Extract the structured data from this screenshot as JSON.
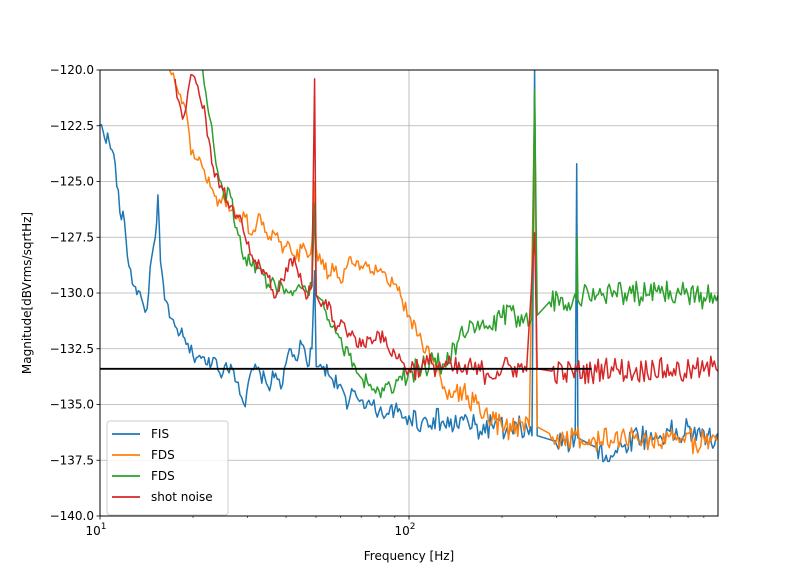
{
  "chart_data": {
    "type": "line",
    "title": "",
    "xlabel": "Frequency [Hz]",
    "ylabel": "Magnitude[dBVrms/sqrtHz]",
    "xscale": "log",
    "xlim": [
      10,
      1000
    ],
    "ylim": [
      -140,
      -120
    ],
    "grid": true,
    "legend_position": "lower-left",
    "x_ticks": [
      {
        "value": 10,
        "base": "10",
        "exp": "1"
      },
      {
        "value": 100,
        "base": "10",
        "exp": "2"
      }
    ],
    "y_ticks": [
      {
        "value": -120,
        "label": "−120.0"
      },
      {
        "value": -122.5,
        "label": "−122.5"
      },
      {
        "value": -125,
        "label": "−125.0"
      },
      {
        "value": -127.5,
        "label": "−127.5"
      },
      {
        "value": -130,
        "label": "−130.0"
      },
      {
        "value": -132.5,
        "label": "−132.5"
      },
      {
        "value": -135,
        "label": "−135.0"
      },
      {
        "value": -137.5,
        "label": "−137.5"
      },
      {
        "value": -140,
        "label": "−140.0"
      }
    ],
    "reference_line": {
      "y": -133.4,
      "x_range": [
        10,
        390
      ],
      "color": "#000000"
    },
    "series": [
      {
        "name": "FIS",
        "color": "#1f77b4",
        "points": [
          [
            10,
            -122.5
          ],
          [
            10.7,
            -123.2
          ],
          [
            11.2,
            -124.2
          ],
          [
            11.6,
            -126.4
          ],
          [
            12,
            -126.8
          ],
          [
            12.4,
            -128.8
          ],
          [
            12.9,
            -129.7
          ],
          [
            13.3,
            -129.9
          ],
          [
            13.8,
            -130.5
          ],
          [
            14.2,
            -130.7
          ],
          [
            14.7,
            -128.4
          ],
          [
            15.1,
            -127.5
          ],
          [
            15.4,
            -125.6
          ],
          [
            15.7,
            -128.6
          ],
          [
            16.2,
            -130.3
          ],
          [
            16.8,
            -131.1
          ],
          [
            17.5,
            -131.5
          ],
          [
            18.2,
            -131.8
          ],
          [
            19,
            -132.3
          ],
          [
            20,
            -132.8
          ],
          [
            21,
            -132.8
          ],
          [
            22,
            -133.2
          ],
          [
            23.5,
            -132.9
          ],
          [
            25,
            -133.6
          ],
          [
            26.5,
            -133.2
          ],
          [
            28,
            -134.0
          ],
          [
            29.5,
            -135.1
          ],
          [
            31,
            -133.4
          ],
          [
            33,
            -133.6
          ],
          [
            35,
            -134.2
          ],
          [
            37,
            -133.6
          ],
          [
            39,
            -134.1
          ],
          [
            41,
            -132.5
          ],
          [
            43,
            -133.0
          ],
          [
            45,
            -132.3
          ],
          [
            47,
            -133.3
          ],
          [
            48.5,
            -132.5
          ],
          [
            49.5,
            -129.0
          ],
          [
            50.1,
            -133.3
          ],
          [
            51,
            -133.3
          ],
          [
            53,
            -133.3
          ],
          [
            56,
            -133.8
          ],
          [
            60,
            -134.1
          ],
          [
            63,
            -135.2
          ],
          [
            66,
            -134.4
          ],
          [
            70,
            -134.8
          ],
          [
            75,
            -135.0
          ],
          [
            80,
            -135.3
          ],
          [
            85,
            -135.4
          ],
          [
            90,
            -135.2
          ],
          [
            95,
            -135.6
          ],
          [
            100,
            -135.5
          ],
          [
            110,
            -135.8
          ],
          [
            120,
            -135.6
          ],
          [
            135,
            -136.0
          ],
          [
            150,
            -135.7
          ],
          [
            170,
            -136.2
          ],
          [
            190,
            -135.8
          ],
          [
            210,
            -136.4
          ],
          [
            230,
            -136.0
          ],
          [
            250,
            -136.4
          ],
          [
            255,
            -120.0
          ],
          [
            260,
            -136.4
          ],
          [
            290,
            -136.6
          ],
          [
            320,
            -136.8
          ],
          [
            345,
            -136.5
          ],
          [
            349,
            -124.2
          ],
          [
            352,
            -136.5
          ],
          [
            400,
            -136.9
          ],
          [
            450,
            -137.3
          ],
          [
            500,
            -136.8
          ],
          [
            550,
            -136.3
          ],
          [
            600,
            -136.6
          ],
          [
            650,
            -136.4
          ],
          [
            700,
            -136.2
          ],
          [
            750,
            -136.5
          ],
          [
            800,
            -136.0
          ],
          [
            850,
            -136.6
          ],
          [
            900,
            -136.2
          ],
          [
            950,
            -136.7
          ],
          [
            1000,
            -136.3
          ]
        ]
      },
      {
        "name": "FDS",
        "color": "#ff7f0e",
        "points": [
          [
            16.8,
            -120.0
          ],
          [
            17.5,
            -120.6
          ],
          [
            18.2,
            -121.1
          ],
          [
            19,
            -121.8
          ],
          [
            19.7,
            -123.8
          ],
          [
            20.5,
            -124.0
          ],
          [
            21.2,
            -124.1
          ],
          [
            22,
            -124.9
          ],
          [
            23,
            -125.3
          ],
          [
            24,
            -126.1
          ],
          [
            25,
            -125.6
          ],
          [
            26.5,
            -126.3
          ],
          [
            28,
            -126.5
          ],
          [
            29.5,
            -126.6
          ],
          [
            31,
            -127.4
          ],
          [
            33,
            -126.5
          ],
          [
            35,
            -127.6
          ],
          [
            37,
            -127.4
          ],
          [
            39,
            -128.2
          ],
          [
            41,
            -127.8
          ],
          [
            43,
            -128.5
          ],
          [
            45,
            -128.0
          ],
          [
            47,
            -128.4
          ],
          [
            48.5,
            -127.8
          ],
          [
            49.5,
            -125.0
          ],
          [
            50.1,
            -128.0
          ],
          [
            52,
            -128.7
          ],
          [
            55,
            -129.2
          ],
          [
            58,
            -128.8
          ],
          [
            61,
            -129.5
          ],
          [
            64,
            -128.4
          ],
          [
            67,
            -128.8
          ],
          [
            70,
            -128.8
          ],
          [
            75,
            -129.1
          ],
          [
            80,
            -129.0
          ],
          [
            85,
            -129.5
          ],
          [
            90,
            -129.6
          ],
          [
            95,
            -130.3
          ],
          [
            100,
            -131.0
          ],
          [
            110,
            -132.2
          ],
          [
            120,
            -133.1
          ],
          [
            130,
            -134.2
          ],
          [
            140,
            -134.4
          ],
          [
            155,
            -134.6
          ],
          [
            170,
            -135.4
          ],
          [
            185,
            -135.8
          ],
          [
            200,
            -136.0
          ],
          [
            215,
            -136.2
          ],
          [
            230,
            -135.8
          ],
          [
            245,
            -136.0
          ],
          [
            255,
            -121.6
          ],
          [
            260,
            -136.0
          ],
          [
            285,
            -136.3
          ],
          [
            310,
            -136.6
          ],
          [
            340,
            -136.4
          ],
          [
            370,
            -136.8
          ],
          [
            400,
            -136.6
          ],
          [
            450,
            -136.6
          ],
          [
            500,
            -136.4
          ],
          [
            550,
            -136.6
          ],
          [
            600,
            -136.5
          ],
          [
            650,
            -136.8
          ],
          [
            700,
            -136.4
          ],
          [
            750,
            -136.7
          ],
          [
            800,
            -136.3
          ],
          [
            850,
            -136.9
          ],
          [
            900,
            -136.5
          ],
          [
            950,
            -136.6
          ],
          [
            1000,
            -136.4
          ]
        ]
      },
      {
        "name": "FDS",
        "color": "#2ca02c",
        "points": [
          [
            21.5,
            -120.0
          ],
          [
            22,
            -121.0
          ],
          [
            23,
            -122.5
          ],
          [
            24,
            -124.5
          ],
          [
            25,
            -125.4
          ],
          [
            26.5,
            -125.7
          ],
          [
            28,
            -127.4
          ],
          [
            29.5,
            -128.4
          ],
          [
            31,
            -128.8
          ],
          [
            33,
            -128.9
          ],
          [
            35,
            -129.6
          ],
          [
            37,
            -129.7
          ],
          [
            39,
            -129.7
          ],
          [
            41,
            -130.0
          ],
          [
            43,
            -129.9
          ],
          [
            45,
            -129.8
          ],
          [
            47,
            -130.0
          ],
          [
            48.5,
            -129.7
          ],
          [
            49.5,
            -126.0
          ],
          [
            50.1,
            -130.1
          ],
          [
            52,
            -130.3
          ],
          [
            55,
            -131.2
          ],
          [
            58,
            -131.8
          ],
          [
            61,
            -132.5
          ],
          [
            64,
            -132.8
          ],
          [
            67,
            -133.3
          ],
          [
            70,
            -133.8
          ],
          [
            75,
            -134.1
          ],
          [
            80,
            -134.4
          ],
          [
            85,
            -134.1
          ],
          [
            90,
            -134.2
          ],
          [
            95,
            -133.9
          ],
          [
            100,
            -133.5
          ],
          [
            110,
            -133.4
          ],
          [
            120,
            -133.0
          ],
          [
            130,
            -133.2
          ],
          [
            140,
            -132.3
          ],
          [
            150,
            -131.9
          ],
          [
            165,
            -131.6
          ],
          [
            180,
            -131.6
          ],
          [
            200,
            -131.1
          ],
          [
            220,
            -131.0
          ],
          [
            240,
            -130.9
          ],
          [
            250,
            -131.1
          ],
          [
            255,
            -120.9
          ],
          [
            260,
            -131.0
          ],
          [
            285,
            -130.4
          ],
          [
            310,
            -130.2
          ],
          [
            340,
            -130.3
          ],
          [
            348,
            -130.3
          ],
          [
            350,
            -127.5
          ],
          [
            352,
            -130.3
          ],
          [
            380,
            -130.0
          ],
          [
            420,
            -130.1
          ],
          [
            460,
            -129.9
          ],
          [
            500,
            -130.0
          ],
          [
            550,
            -130.0
          ],
          [
            600,
            -130.1
          ],
          [
            650,
            -130.0
          ],
          [
            700,
            -129.9
          ],
          [
            750,
            -130.0
          ],
          [
            800,
            -130.1
          ],
          [
            850,
            -130.0
          ],
          [
            900,
            -130.2
          ],
          [
            950,
            -130.0
          ],
          [
            1000,
            -130.1
          ]
        ]
      },
      {
        "name": "shot noise",
        "color": "#d62728",
        "points": [
          [
            17.5,
            -120.4
          ],
          [
            18,
            -121.4
          ],
          [
            18.5,
            -122.2
          ],
          [
            19,
            -121.7
          ],
          [
            19.7,
            -120.2
          ],
          [
            20.5,
            -120.6
          ],
          [
            21.2,
            -121.4
          ],
          [
            22,
            -122.2
          ],
          [
            23,
            -124.2
          ],
          [
            24,
            -124.7
          ],
          [
            25,
            -125.4
          ],
          [
            26.5,
            -126.1
          ],
          [
            28,
            -126.6
          ],
          [
            29.5,
            -127.5
          ],
          [
            31,
            -128.3
          ],
          [
            33,
            -128.8
          ],
          [
            35,
            -129.3
          ],
          [
            37,
            -130.2
          ],
          [
            39,
            -129.4
          ],
          [
            41,
            -128.5
          ],
          [
            43,
            -128.7
          ],
          [
            45,
            -129.6
          ],
          [
            47,
            -130.2
          ],
          [
            48.5,
            -129.7
          ],
          [
            49.5,
            -120.4
          ],
          [
            50.1,
            -130.1
          ],
          [
            52,
            -130.6
          ],
          [
            55,
            -130.4
          ],
          [
            58,
            -131.7
          ],
          [
            61,
            -131.3
          ],
          [
            64,
            -131.8
          ],
          [
            67,
            -132.0
          ],
          [
            70,
            -132.4
          ],
          [
            75,
            -132.0
          ],
          [
            80,
            -131.8
          ],
          [
            85,
            -132.4
          ],
          [
            90,
            -132.7
          ],
          [
            95,
            -133.1
          ],
          [
            100,
            -133.4
          ],
          [
            110,
            -133.3
          ],
          [
            120,
            -133.2
          ],
          [
            130,
            -133.3
          ],
          [
            140,
            -133.4
          ],
          [
            150,
            -133.5
          ],
          [
            160,
            -133.4
          ],
          [
            170,
            -133.5
          ],
          [
            180,
            -133.6
          ],
          [
            200,
            -133.4
          ],
          [
            220,
            -133.3
          ],
          [
            240,
            -133.5
          ],
          [
            255,
            -127.3
          ],
          [
            260,
            -133.4
          ],
          [
            290,
            -133.5
          ],
          [
            320,
            -133.6
          ],
          [
            350,
            -133.5
          ],
          [
            390,
            -133.6
          ],
          [
            430,
            -133.3
          ],
          [
            470,
            -133.4
          ],
          [
            520,
            -133.5
          ],
          [
            570,
            -133.5
          ],
          [
            620,
            -133.3
          ],
          [
            670,
            -133.5
          ],
          [
            720,
            -133.4
          ],
          [
            780,
            -133.6
          ],
          [
            840,
            -133.4
          ],
          [
            900,
            -133.5
          ],
          [
            960,
            -133.3
          ],
          [
            1000,
            -133.5
          ]
        ]
      }
    ]
  }
}
